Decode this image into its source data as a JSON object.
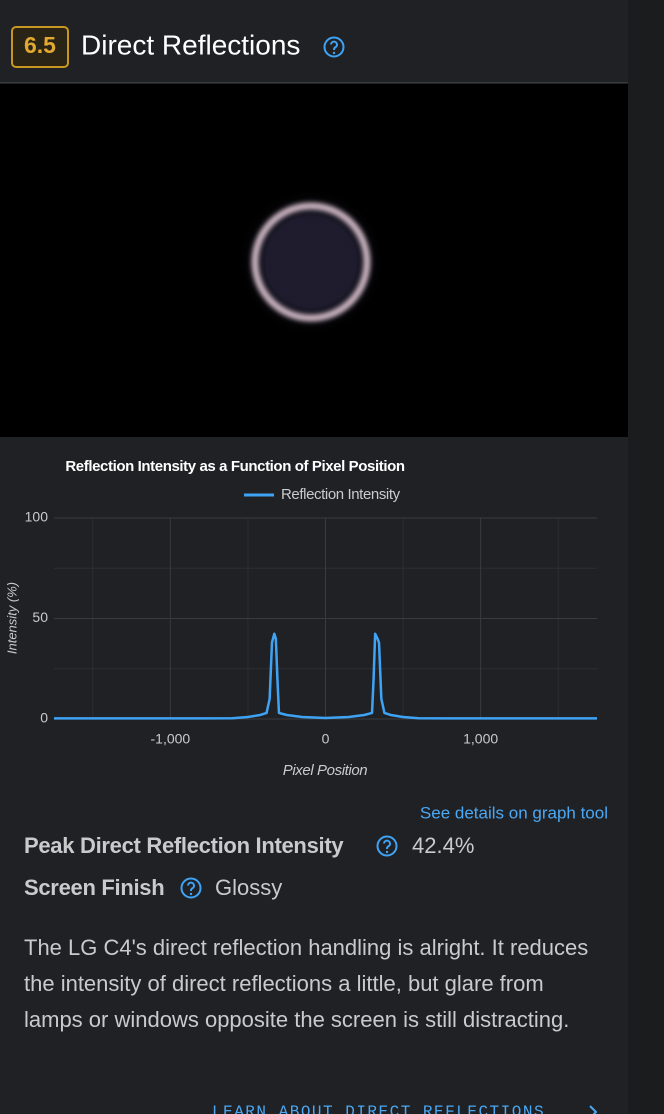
{
  "header": {
    "score": "6.5",
    "title": "Direct Reflections"
  },
  "chart_data": {
    "type": "line",
    "title": "Reflection Intensity as a Function of Pixel Position",
    "x_label": "Pixel Position",
    "y_label": "Intensity (%)",
    "x": [
      -1750,
      -1200,
      -800,
      -600,
      -500,
      -420,
      -380,
      -360,
      -345,
      -330,
      -320,
      -310,
      -300,
      -250,
      -150,
      0,
      150,
      250,
      300,
      310,
      320,
      335,
      345,
      360,
      380,
      420,
      500,
      600,
      800,
      1200,
      1750
    ],
    "series": [
      {
        "name": "Reflection Intensity",
        "color": "#3fa3f5",
        "values": [
          0.3,
          0.3,
          0.3,
          0.4,
          1,
          2,
          3,
          10,
          38,
          42.4,
          40,
          20,
          3,
          2,
          1,
          0.5,
          1,
          2,
          3,
          20,
          42.4,
          40,
          38,
          10,
          3,
          2,
          1,
          0.4,
          0.3,
          0.3,
          0.3
        ]
      }
    ],
    "xlim": [
      -1750,
      1750
    ],
    "ylim": [
      0,
      100
    ],
    "xticks": [
      {
        "value": -1000,
        "label": "-1,000"
      },
      0,
      {
        "value": 1000,
        "label": "1,000"
      }
    ],
    "xminor_ticks": [
      -1500,
      -500,
      500,
      1500
    ],
    "yticks": [
      0,
      50,
      100
    ],
    "yminor_ticks": [
      25,
      75
    ],
    "grid": true,
    "legend": "top"
  },
  "graph_link": "See details on graph tool",
  "properties": [
    {
      "name": "Peak Direct Reflection Intensity",
      "value": "42.4%"
    },
    {
      "name": "Screen Finish",
      "value": "Glossy"
    }
  ],
  "description": "The LG C4's direct reflection handling is alright. It reduces the intensity of direct reflections a little, but glare from lamps or windows opposite the screen is still distracting.",
  "learn_link": "LEARN ABOUT DIRECT REFLECTIONS"
}
